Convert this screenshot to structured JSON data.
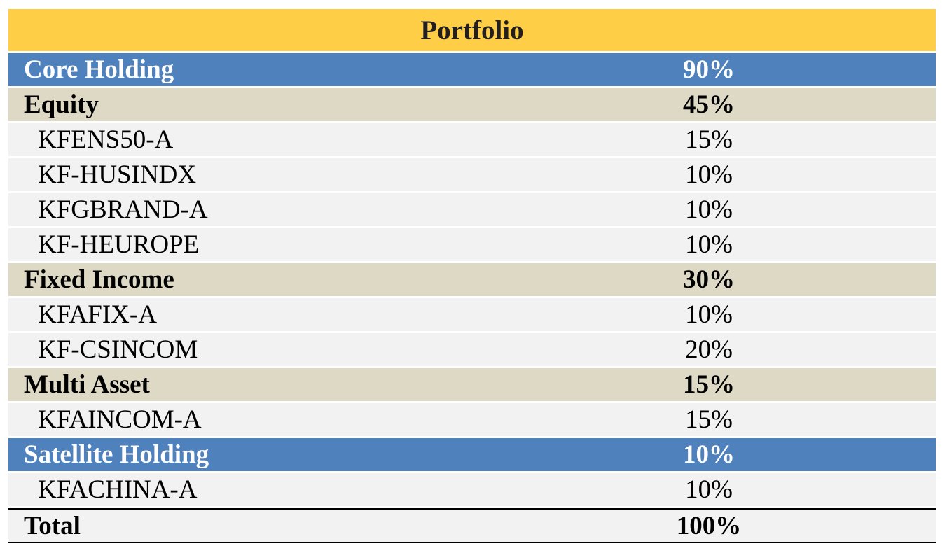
{
  "title": "Portfolio",
  "colors": {
    "title_bg": "#FECE46",
    "holding_bg": "#4F81BD",
    "category_bg": "#DDD9C4",
    "fund_bg": "#F2F2F2"
  },
  "rows": [
    {
      "type": "holding",
      "label": "Core Holding",
      "value": "90%"
    },
    {
      "type": "category",
      "label": "Equity",
      "value": "45%"
    },
    {
      "type": "fund",
      "label": "KFENS50-A",
      "value": "15%"
    },
    {
      "type": "fund",
      "label": "KF-HUSINDX",
      "value": "10%"
    },
    {
      "type": "fund",
      "label": "KFGBRAND-A",
      "value": "10%"
    },
    {
      "type": "fund",
      "label": "KF-HEUROPE",
      "value": "10%"
    },
    {
      "type": "category",
      "label": "Fixed Income",
      "value": "30%"
    },
    {
      "type": "fund",
      "label": "KFAFIX-A",
      "value": "10%"
    },
    {
      "type": "fund",
      "label": "KF-CSINCOM",
      "value": "20%"
    },
    {
      "type": "category",
      "label": "Multi Asset",
      "value": "15%"
    },
    {
      "type": "fund",
      "label": "KFAINCOM-A",
      "value": "15%"
    },
    {
      "type": "holding",
      "label": "Satellite Holding",
      "value": "10%"
    },
    {
      "type": "fund",
      "label": "KFACHINA-A",
      "value": "10%"
    }
  ],
  "total": {
    "label": "Total",
    "value": "100%"
  }
}
